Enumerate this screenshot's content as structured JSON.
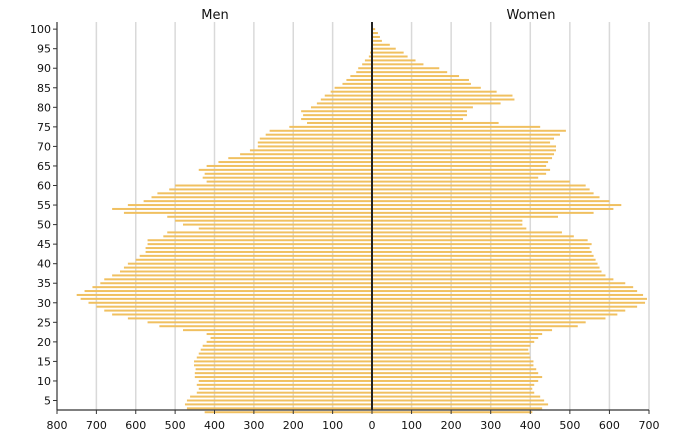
{
  "chart_data": {
    "type": "bar",
    "orientation": "horizontal",
    "subtype": "population-pyramid",
    "title": "",
    "left_label": "Men",
    "right_label": "Women",
    "x_ticks": [
      "800",
      "700",
      "600",
      "500",
      "400",
      "300",
      "200",
      "100",
      "0",
      "100",
      "200",
      "300",
      "400",
      "500",
      "600",
      "700"
    ],
    "y_ticks": [
      "5",
      "10",
      "15",
      "20",
      "25",
      "30",
      "35",
      "40",
      "45",
      "50",
      "55",
      "60",
      "65",
      "70",
      "75",
      "80",
      "85",
      "90",
      "95",
      "100"
    ],
    "xlim": [
      -800,
      700
    ],
    "ylim": [
      1,
      100
    ],
    "grid": true,
    "bar_color": "#f0c060",
    "ages": [
      2,
      3,
      4,
      5,
      6,
      7,
      8,
      9,
      10,
      11,
      12,
      13,
      14,
      15,
      16,
      17,
      18,
      19,
      20,
      21,
      22,
      23,
      24,
      25,
      26,
      27,
      28,
      29,
      30,
      31,
      32,
      33,
      34,
      35,
      36,
      37,
      38,
      39,
      40,
      41,
      42,
      43,
      44,
      45,
      46,
      47,
      48,
      49,
      50,
      51,
      52,
      53,
      54,
      55,
      56,
      57,
      58,
      59,
      60,
      61,
      62,
      63,
      64,
      65,
      66,
      67,
      68,
      69,
      70,
      71,
      72,
      73,
      74,
      75,
      76,
      77,
      78,
      79,
      80,
      81,
      82,
      83,
      84,
      85,
      86,
      87,
      88,
      89,
      90,
      91,
      92,
      93,
      94,
      95,
      96,
      97,
      98,
      99,
      100
    ],
    "series": [
      {
        "name": "Men",
        "values": [
          425,
          470,
          475,
          470,
          462,
          445,
          440,
          445,
          440,
          450,
          450,
          448,
          452,
          452,
          445,
          440,
          435,
          430,
          420,
          410,
          420,
          480,
          540,
          570,
          620,
          660,
          680,
          700,
          720,
          740,
          750,
          730,
          710,
          690,
          680,
          660,
          640,
          630,
          620,
          600,
          590,
          575,
          575,
          570,
          570,
          530,
          520,
          440,
          480,
          500,
          520,
          630,
          660,
          620,
          580,
          560,
          545,
          515,
          500,
          420,
          430,
          425,
          440,
          420,
          390,
          365,
          335,
          310,
          290,
          290,
          285,
          270,
          260,
          210,
          165,
          180,
          175,
          180,
          155,
          140,
          130,
          120,
          105,
          95,
          75,
          65,
          55,
          40,
          35,
          25,
          18,
          8,
          5,
          3,
          1,
          0,
          0,
          0,
          0
        ]
      },
      {
        "name": "Women",
        "values": [
          405,
          430,
          445,
          435,
          425,
          410,
          405,
          410,
          420,
          430,
          420,
          415,
          408,
          408,
          400,
          398,
          395,
          400,
          410,
          420,
          430,
          455,
          520,
          540,
          590,
          620,
          640,
          670,
          690,
          695,
          685,
          670,
          660,
          640,
          610,
          590,
          580,
          575,
          570,
          565,
          560,
          555,
          550,
          555,
          545,
          510,
          480,
          390,
          380,
          380,
          470,
          560,
          610,
          630,
          600,
          575,
          560,
          550,
          540,
          500,
          420,
          440,
          450,
          440,
          445,
          455,
          460,
          465,
          465,
          450,
          460,
          475,
          490,
          425,
          320,
          230,
          240,
          240,
          255,
          325,
          360,
          355,
          315,
          275,
          250,
          245,
          220,
          190,
          170,
          130,
          110,
          90,
          80,
          60,
          45,
          25,
          20,
          15,
          8
        ]
      }
    ]
  }
}
